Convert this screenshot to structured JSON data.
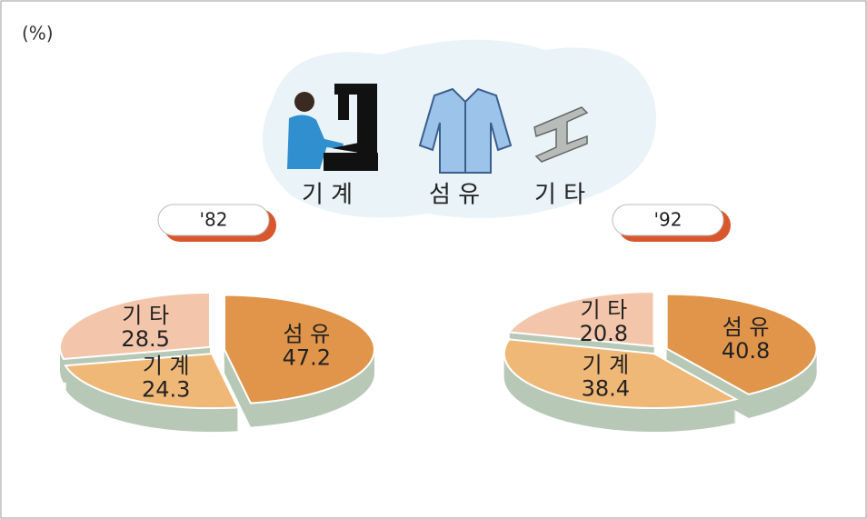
{
  "unit": "(%)",
  "legend": [
    "기 계",
    "섬 유",
    "기 타"
  ],
  "chart_data": [
    {
      "type": "pie",
      "title": "'82",
      "categories": [
        "섬 유",
        "기 계",
        "기 타"
      ],
      "values": [
        47.2,
        24.3,
        28.5
      ],
      "colors": [
        "#e0954a",
        "#f0b877",
        "#f3c6ab"
      ]
    },
    {
      "type": "pie",
      "title": "'92",
      "categories": [
        "섬 유",
        "기 계",
        "기 타"
      ],
      "values": [
        40.8,
        38.4,
        20.8
      ],
      "colors": [
        "#e0954a",
        "#f0b877",
        "#f3c6ab"
      ]
    }
  ]
}
